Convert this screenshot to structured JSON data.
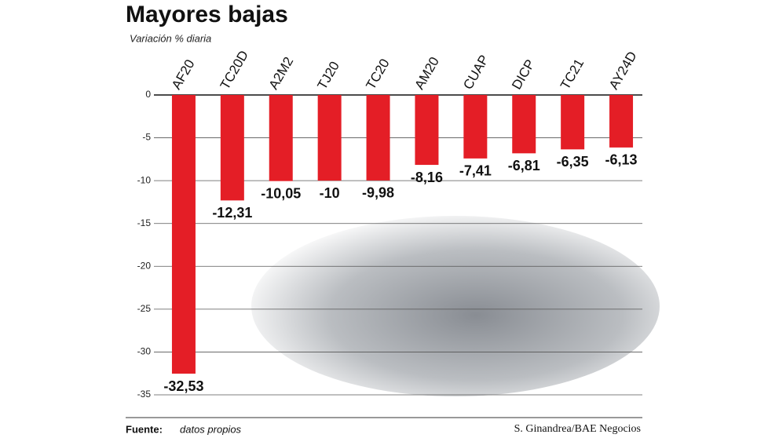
{
  "chart_data": {
    "type": "bar",
    "title": "Mayores bajas",
    "subtitle": "Variación % diaria",
    "categories": [
      "AF20",
      "TC20D",
      "A2M2",
      "TJ20",
      "TC20",
      "AM20",
      "CUAP",
      "DICP",
      "TC21",
      "AY24D"
    ],
    "values": [
      -32.53,
      -12.31,
      -10.05,
      -10,
      -9.98,
      -8.16,
      -7.41,
      -6.81,
      -6.35,
      -6.13
    ],
    "value_labels": [
      "-32,53",
      "-12,31",
      "-10,05",
      "-10",
      "-9,98",
      "-8,16",
      "-7,41",
      "-6,81",
      "-6,35",
      "-6,13"
    ],
    "color": "#e41e26",
    "ylim": [
      -35,
      0
    ],
    "yticks": [
      0,
      -5,
      -10,
      -15,
      -20,
      -25,
      -30,
      -35
    ],
    "grid": true,
    "source_label": "Fuente:",
    "source": "datos propios",
    "credit": "S. Ginandrea/BAE Negocios"
  }
}
